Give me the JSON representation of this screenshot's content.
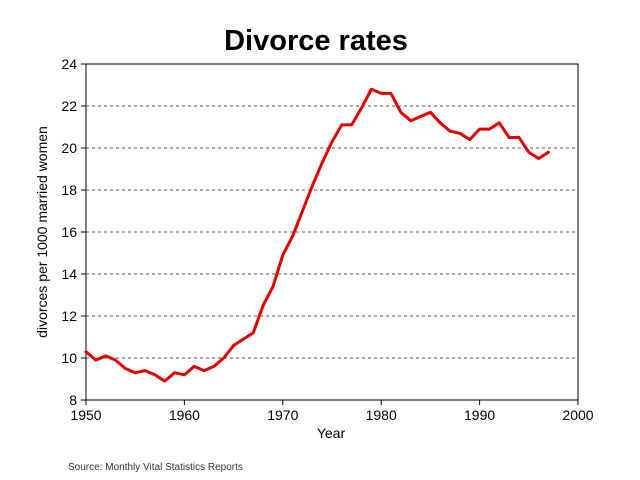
{
  "chart_data": {
    "type": "line",
    "title": "Divorce rates",
    "xlabel": "Year",
    "ylabel": "divorces per 1000 married women",
    "source": "Source: Monthly Vital Statistics Reports",
    "xlim": [
      1950,
      2000
    ],
    "ylim": [
      8,
      24
    ],
    "x_ticks": [
      1950,
      1960,
      1970,
      1980,
      1990,
      2000
    ],
    "y_ticks": [
      8,
      10,
      12,
      14,
      16,
      18,
      20,
      22,
      24
    ],
    "grid": "horizontal-dashed",
    "line_color": "#dd0000",
    "series": [
      {
        "x": [
          1950,
          1951,
          1952,
          1953,
          1954,
          1955,
          1956,
          1957,
          1958,
          1959,
          1960,
          1961,
          1962,
          1963,
          1964,
          1965,
          1966,
          1967,
          1968,
          1969,
          1970,
          1971,
          1972,
          1973,
          1974,
          1975,
          1976,
          1977,
          1978,
          1979,
          1980,
          1981,
          1982,
          1983,
          1984,
          1985,
          1986,
          1987,
          1988,
          1989,
          1990,
          1991,
          1992,
          1993,
          1994,
          1995,
          1996,
          1997
        ],
        "values": [
          10.3,
          9.9,
          10.1,
          9.9,
          9.5,
          9.3,
          9.4,
          9.2,
          8.9,
          9.3,
          9.2,
          9.6,
          9.4,
          9.6,
          10.0,
          10.6,
          10.9,
          11.2,
          12.5,
          13.4,
          14.9,
          15.8,
          17.0,
          18.2,
          19.3,
          20.3,
          21.1,
          21.1,
          21.9,
          22.8,
          22.6,
          22.6,
          21.7,
          21.3,
          21.5,
          21.7,
          21.2,
          20.8,
          20.7,
          20.4,
          20.9,
          20.9,
          21.2,
          20.5,
          20.5,
          19.8,
          19.5,
          19.8
        ]
      }
    ]
  }
}
